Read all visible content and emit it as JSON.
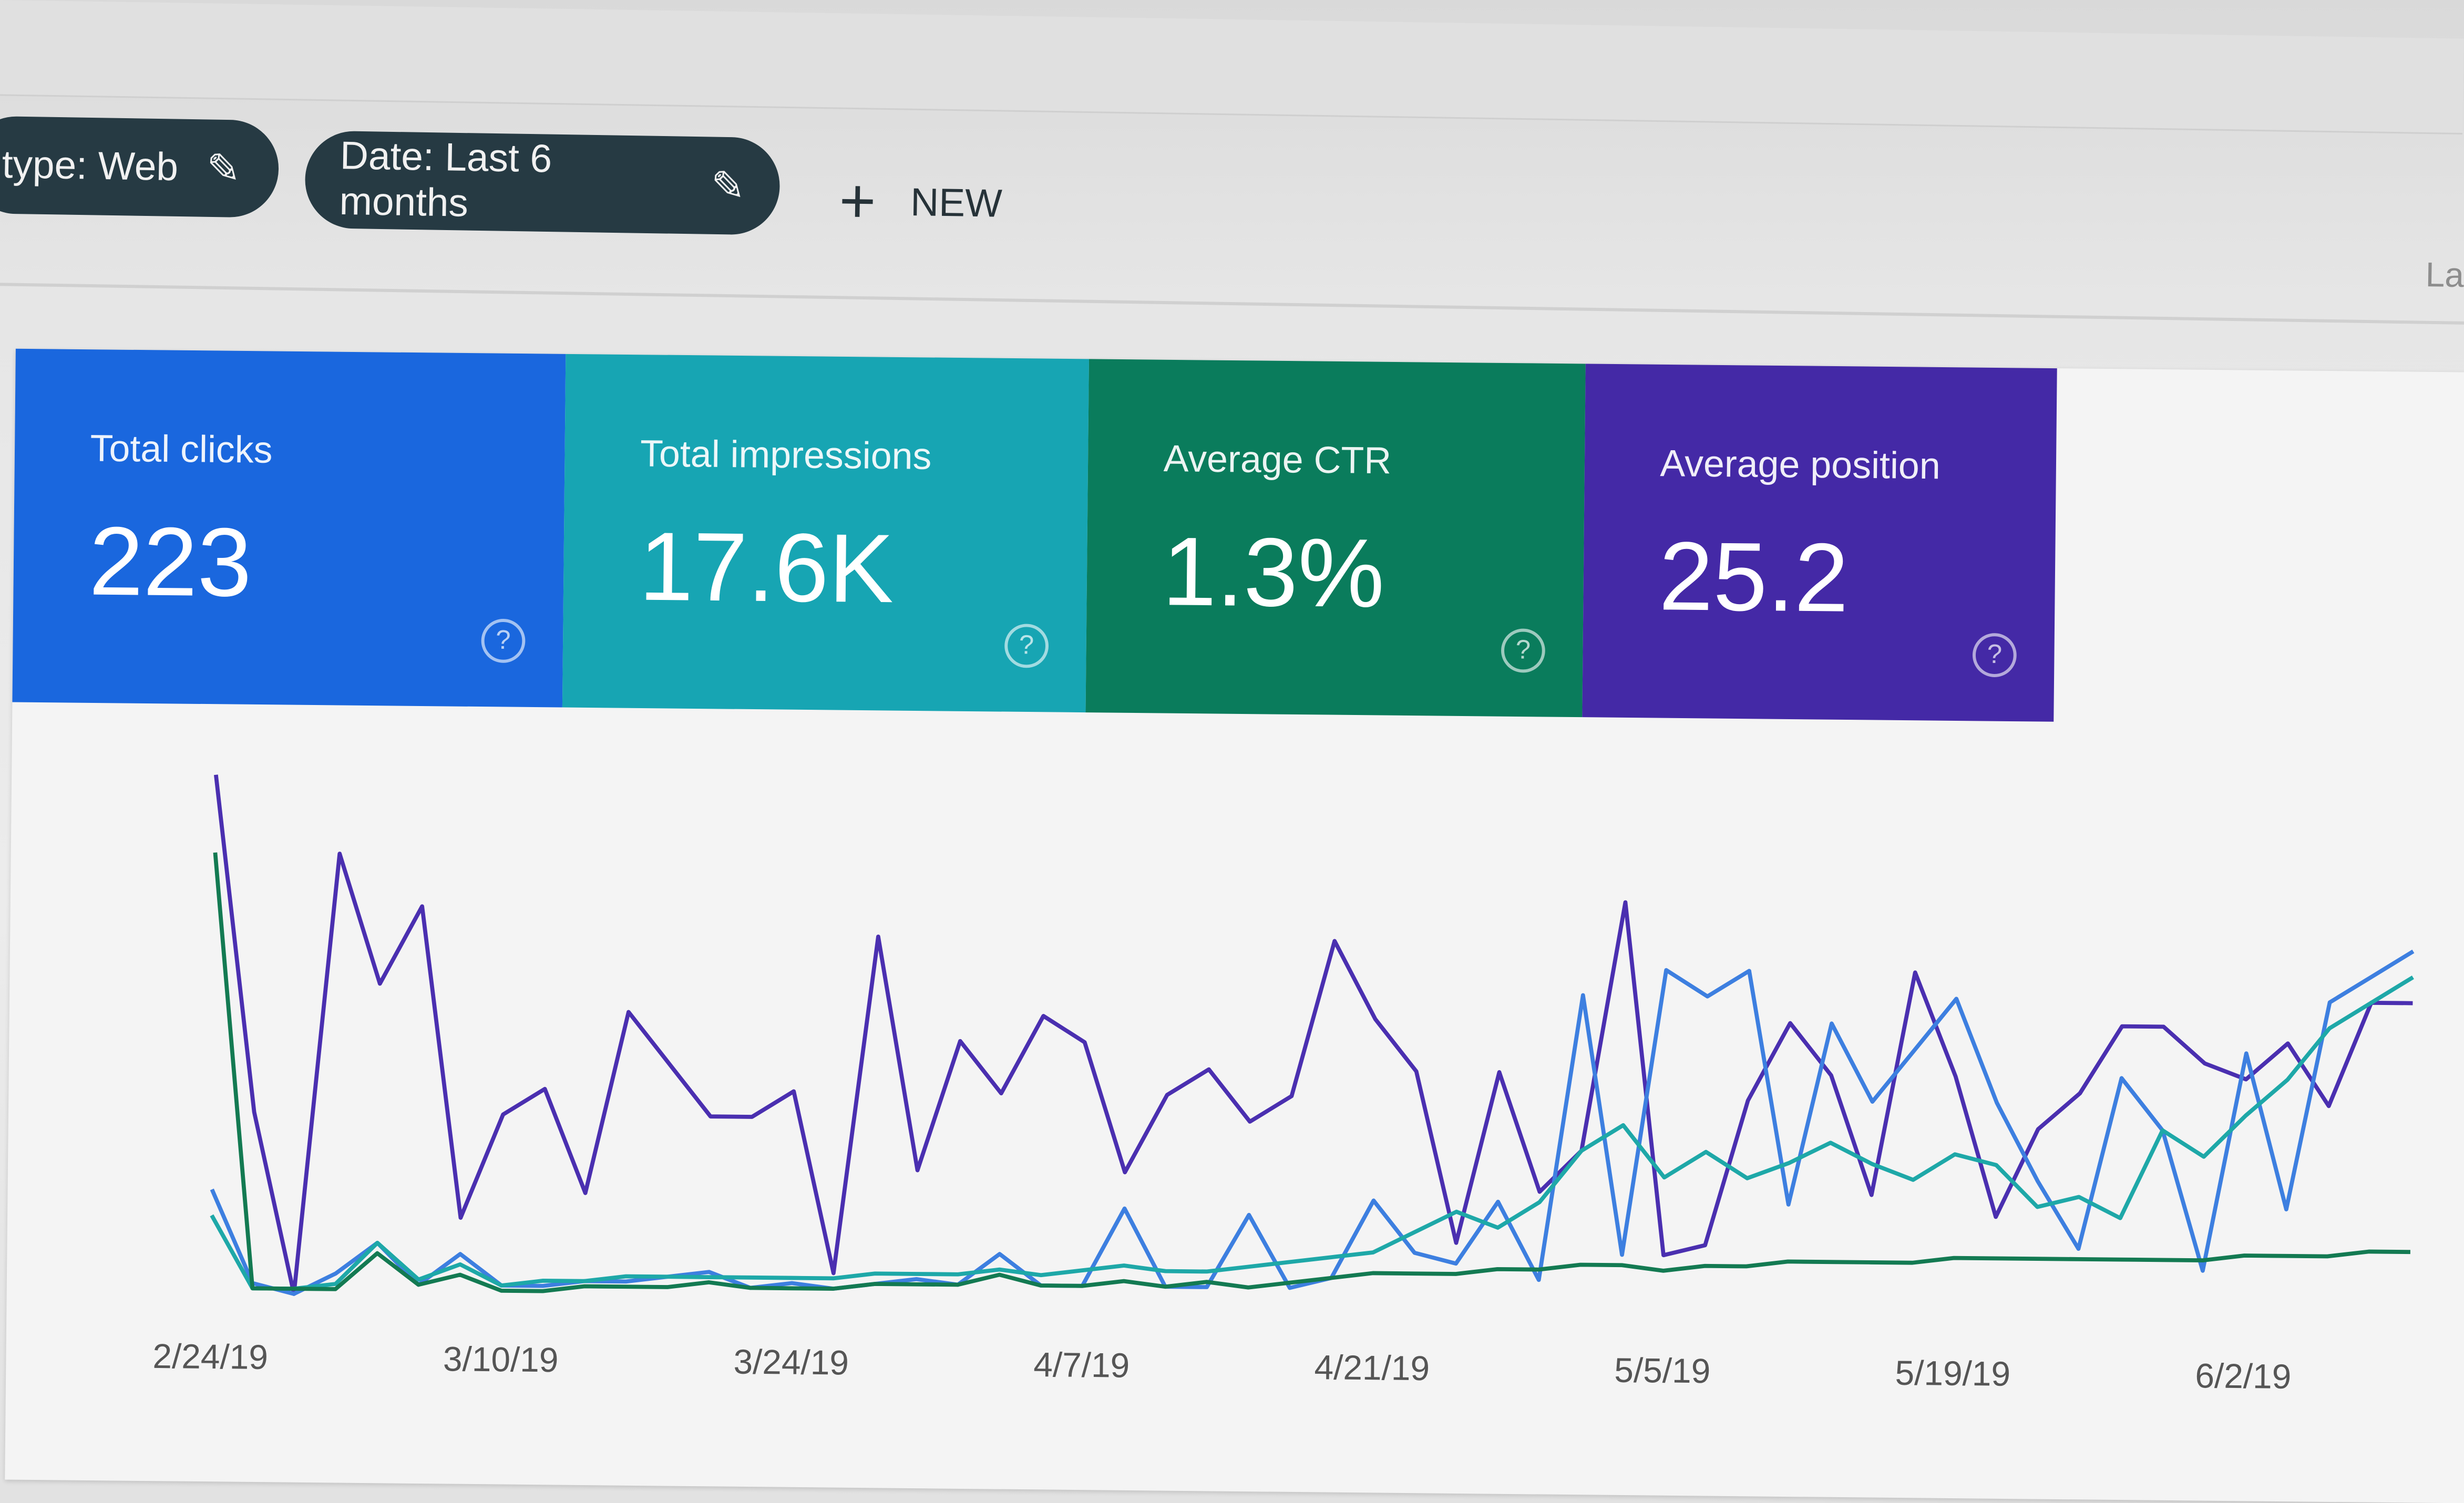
{
  "filters": [
    {
      "label": "type: Web",
      "icon": "pencil-icon"
    },
    {
      "label": "Date: Last 6 months",
      "icon": "pencil-icon"
    }
  ],
  "new_button": {
    "label": "NEW",
    "icon": "plus-icon"
  },
  "corner_text": "La",
  "metrics": [
    {
      "label": "Total clicks",
      "value": "223",
      "color": "#1a67de",
      "icon": "help-icon"
    },
    {
      "label": "Total impressions",
      "value": "17.6K",
      "color": "#17a5b3",
      "icon": "help-icon"
    },
    {
      "label": "Average CTR",
      "value": "1.3%",
      "color": "#0a7c5c",
      "icon": "help-icon"
    },
    {
      "label": "Average position",
      "value": "25.2",
      "color": "#4429a6",
      "icon": "help-icon"
    }
  ],
  "chart_data": {
    "type": "line",
    "x_start": "2/24/19",
    "x_step_days": 2,
    "x_tick_labels": [
      "2/24/19",
      "3/10/19",
      "3/24/19",
      "4/7/19",
      "4/21/19",
      "5/5/19",
      "5/19/19",
      "6/2/19"
    ],
    "grid": false,
    "y_axis_shown": false,
    "series": [
      {
        "metric": "Average position",
        "color": "#4a2fb0",
        "values": [
          100,
          35,
          0,
          85,
          60,
          75,
          15,
          35,
          40,
          20,
          55,
          45,
          35,
          35,
          40,
          5,
          70,
          25,
          50,
          40,
          55,
          50,
          25,
          40,
          45,
          35,
          40,
          70,
          55,
          45,
          12,
          45,
          22,
          30,
          78,
          10,
          12,
          40,
          55,
          45,
          22,
          65,
          45,
          18,
          35,
          42,
          55,
          55,
          48,
          45,
          52,
          40,
          60,
          60
        ]
      },
      {
        "metric": "Total clicks",
        "color": "#3d7fe0",
        "values": [
          20,
          2,
          0,
          4,
          10,
          2,
          8,
          2,
          2,
          3,
          3,
          4,
          5,
          2,
          3,
          2,
          3,
          4,
          3,
          9,
          3,
          3,
          18,
          3,
          3,
          17,
          3,
          5,
          20,
          10,
          8,
          20,
          5,
          60,
          10,
          65,
          60,
          65,
          20,
          55,
          40,
          50,
          60,
          40,
          25,
          12,
          45,
          35,
          8,
          50,
          20,
          60,
          65,
          70
        ]
      },
      {
        "metric": "Total impressions",
        "color": "#1ea8a8",
        "values": [
          15,
          1,
          1,
          2,
          10,
          3,
          6,
          2,
          3,
          3,
          4,
          4,
          4,
          4,
          4,
          4,
          5,
          5,
          5,
          6,
          5,
          6,
          7,
          6,
          6,
          7,
          8,
          9,
          10,
          14,
          18,
          15,
          20,
          30,
          35,
          25,
          30,
          25,
          28,
          32,
          28,
          25,
          30,
          28,
          20,
          22,
          18,
          35,
          30,
          38,
          45,
          55,
          60,
          65
        ]
      },
      {
        "metric": "Average CTR",
        "color": "#137a52",
        "values": [
          85,
          1,
          1,
          1,
          8,
          2,
          4,
          1,
          1,
          2,
          2,
          2,
          3,
          2,
          2,
          2,
          3,
          3,
          3,
          5,
          3,
          3,
          4,
          3,
          4,
          3,
          4,
          5,
          6,
          6,
          6,
          7,
          7,
          8,
          8,
          7,
          8,
          8,
          9,
          9,
          9,
          9,
          10,
          10,
          10,
          10,
          10,
          10,
          10,
          11,
          11,
          11,
          12,
          12
        ]
      }
    ]
  }
}
